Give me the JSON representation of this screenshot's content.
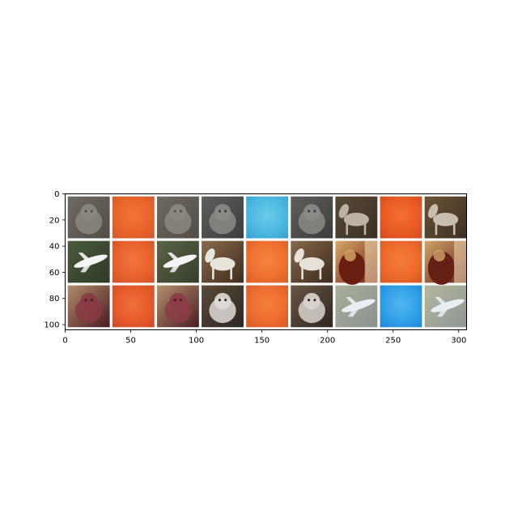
{
  "chart_data": {
    "type": "image",
    "grid": false,
    "xlim": [
      0,
      306
    ],
    "ylim": [
      0,
      104
    ],
    "y_inverted": true,
    "x_ticks": [
      0,
      50,
      100,
      150,
      200,
      250,
      300
    ],
    "y_ticks": [
      0,
      20,
      40,
      60,
      80,
      100
    ],
    "x_tick_labels": [
      "0",
      "50",
      "100",
      "150",
      "200",
      "250",
      "300"
    ],
    "y_tick_labels": [
      "0",
      "20",
      "40",
      "60",
      "80",
      "100"
    ],
    "tile_grid": {
      "rows": 3,
      "cols": 9,
      "tile_size": 32,
      "padding": 2,
      "border_color": "#ffffff"
    },
    "tiles": [
      {
        "row": 0,
        "col": 0,
        "kind": "photo",
        "subject": "cat",
        "colors": [
          "#6e6a64",
          "#524c44",
          "#8c877f"
        ]
      },
      {
        "row": 0,
        "col": 1,
        "kind": "field",
        "colors": [
          "#e8642a",
          "#d4582c",
          "#f2743a"
        ]
      },
      {
        "row": 0,
        "col": 2,
        "kind": "photo",
        "subject": "cat",
        "colors": [
          "#6e6a64",
          "#524c44",
          "#8c877f"
        ]
      },
      {
        "row": 0,
        "col": 3,
        "kind": "photo",
        "subject": "dog",
        "colors": [
          "#5e5e5c",
          "#3d3c3b",
          "#8a8a86"
        ]
      },
      {
        "row": 0,
        "col": 4,
        "kind": "field",
        "colors": [
          "#4cb8e0",
          "#3aa2d2",
          "#6ccbea"
        ]
      },
      {
        "row": 0,
        "col": 5,
        "kind": "photo",
        "subject": "dog",
        "colors": [
          "#5e5e5c",
          "#3d3c3b",
          "#8a8a86"
        ]
      },
      {
        "row": 0,
        "col": 6,
        "kind": "photo",
        "subject": "horse",
        "colors": [
          "#5a4a36",
          "#3a3026",
          "#bcb3a6"
        ]
      },
      {
        "row": 0,
        "col": 7,
        "kind": "field",
        "colors": [
          "#ea5a24",
          "#d24d22",
          "#f46f34"
        ]
      },
      {
        "row": 0,
        "col": 8,
        "kind": "photo",
        "subject": "horse",
        "colors": [
          "#6a5236",
          "#3e3022",
          "#c8beae"
        ]
      },
      {
        "row": 1,
        "col": 0,
        "kind": "photo",
        "subject": "airplane",
        "colors": [
          "#4a5a3c",
          "#2e3a26",
          "#f4f4f4"
        ]
      },
      {
        "row": 1,
        "col": 1,
        "kind": "field",
        "colors": [
          "#e8622c",
          "#d0542a",
          "#f2763c"
        ]
      },
      {
        "row": 1,
        "col": 2,
        "kind": "photo",
        "subject": "airplane",
        "colors": [
          "#5a6446",
          "#363e2a",
          "#f4f4f4"
        ]
      },
      {
        "row": 1,
        "col": 3,
        "kind": "photo",
        "subject": "horse",
        "colors": [
          "#8a6a4a",
          "#3c2c1e",
          "#e8e4dc"
        ]
      },
      {
        "row": 1,
        "col": 4,
        "kind": "field",
        "colors": [
          "#ee7030",
          "#dc6028",
          "#f6843e"
        ]
      },
      {
        "row": 1,
        "col": 5,
        "kind": "photo",
        "subject": "horse",
        "colors": [
          "#86684a",
          "#3a2a1e",
          "#e6e2da"
        ]
      },
      {
        "row": 1,
        "col": 6,
        "kind": "photo",
        "subject": "frog",
        "colors": [
          "#d8a868",
          "#6a1e12",
          "#f0d8b0"
        ]
      },
      {
        "row": 1,
        "col": 7,
        "kind": "field",
        "colors": [
          "#ec6a2c",
          "#d85a26",
          "#f47e3a"
        ]
      },
      {
        "row": 1,
        "col": 8,
        "kind": "photo",
        "subject": "frog",
        "colors": [
          "#d0a46a",
          "#642014",
          "#eed6b0"
        ]
      },
      {
        "row": 2,
        "col": 0,
        "kind": "photo",
        "subject": "cat",
        "colors": [
          "#b08c6a",
          "#4a1a22",
          "#8a3a44"
        ]
      },
      {
        "row": 2,
        "col": 1,
        "kind": "field",
        "colors": [
          "#e65a2a",
          "#ce4c28",
          "#f07038"
        ]
      },
      {
        "row": 2,
        "col": 2,
        "kind": "photo",
        "subject": "cat",
        "colors": [
          "#b4906c",
          "#4c1c24",
          "#8c3c46"
        ]
      },
      {
        "row": 2,
        "col": 3,
        "kind": "photo",
        "subject": "cat",
        "colors": [
          "#5a4a3a",
          "#2c2622",
          "#dedcd8"
        ]
      },
      {
        "row": 2,
        "col": 4,
        "kind": "field",
        "colors": [
          "#ec6c30",
          "#d85c28",
          "#f6803c"
        ]
      },
      {
        "row": 2,
        "col": 5,
        "kind": "photo",
        "subject": "cat",
        "colors": [
          "#6a5644",
          "#2e2622",
          "#d8d4ce"
        ]
      },
      {
        "row": 2,
        "col": 6,
        "kind": "photo",
        "subject": "airplane",
        "colors": [
          "#aab09a",
          "#8a9290",
          "#e8eef4"
        ]
      },
      {
        "row": 2,
        "col": 7,
        "kind": "field",
        "colors": [
          "#30a0e8",
          "#2488d8",
          "#52b6f0"
        ]
      },
      {
        "row": 2,
        "col": 8,
        "kind": "photo",
        "subject": "airplane",
        "colors": [
          "#b4b89e",
          "#8e9694",
          "#e8eef4"
        ]
      }
    ]
  }
}
